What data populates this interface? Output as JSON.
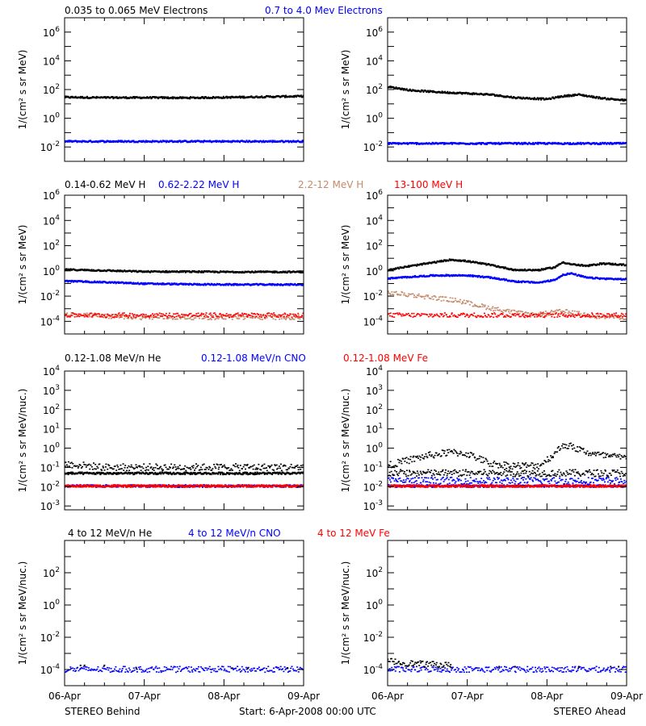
{
  "footer": {
    "left": "STEREO Behind",
    "center": "Start:  6-Apr-2008 00:00 UTC",
    "right": "STEREO Ahead"
  },
  "colors": {
    "black": "#000000",
    "blue": "#0000ff",
    "tan": "#c48a6a",
    "red": "#ff0000"
  },
  "chart_data": [
    {
      "type": "scatter",
      "row_title": [
        {
          "text": "0.035 to 0.065 MeV Electrons",
          "color": "black"
        },
        {
          "text": "0.7 to 4.0 Mev Electrons",
          "color": "blue"
        }
      ],
      "ylabel": "1/(cm² s sr MeV)",
      "yscale": "log",
      "ylim_exp": [
        -3,
        7
      ],
      "yticks": [
        {
          "exp": -2,
          "label": "10",
          "sup": "-2"
        },
        {
          "exp": 0,
          "label": "10",
          "sup": "0"
        },
        {
          "exp": 2,
          "label": "10",
          "sup": "2"
        },
        {
          "exp": 4,
          "label": "10",
          "sup": "4"
        },
        {
          "exp": 6,
          "label": "10",
          "sup": "6"
        }
      ],
      "xticks": [],
      "xlim_days": [
        0,
        3
      ],
      "panels": [
        {
          "spacecraft": "STEREO Behind",
          "series": [
            {
              "color": "black",
              "style": "dense",
              "x": [
                0,
                0.5,
                1.0,
                1.5,
                2.0,
                2.5,
                3.0
              ],
              "y": [
                30,
                28,
                28,
                27,
                29,
                32,
                35
              ]
            },
            {
              "color": "blue",
              "style": "dense",
              "x": [
                0,
                0.5,
                1.0,
                1.5,
                2.0,
                2.5,
                3.0
              ],
              "y": [
                0.025,
                0.025,
                0.025,
                0.025,
                0.025,
                0.025,
                0.025
              ]
            }
          ]
        },
        {
          "spacecraft": "STEREO Ahead",
          "series": [
            {
              "color": "black",
              "style": "dense",
              "x": [
                0,
                0.3,
                0.6,
                1.0,
                1.3,
                1.6,
                2.0,
                2.2,
                2.4,
                2.7,
                3.0
              ],
              "y": [
                160,
                90,
                70,
                55,
                45,
                28,
                22,
                35,
                45,
                25,
                18
              ]
            },
            {
              "color": "blue",
              "style": "dense",
              "x": [
                0,
                0.5,
                1.0,
                1.5,
                2.0,
                2.5,
                3.0
              ],
              "y": [
                0.018,
                0.018,
                0.018,
                0.018,
                0.018,
                0.018,
                0.018
              ]
            }
          ]
        }
      ]
    },
    {
      "type": "scatter",
      "row_title": [
        {
          "text": "0.14-0.62 MeV H",
          "color": "black"
        },
        {
          "text": "0.62-2.22 MeV H",
          "color": "blue"
        },
        {
          "text": "2.2-12 MeV H",
          "color": "tan"
        },
        {
          "text": "13-100 MeV H",
          "color": "red"
        }
      ],
      "ylabel": "1/(cm² s sr MeV)",
      "yscale": "log",
      "ylim_exp": [
        -5,
        6
      ],
      "yticks": [
        {
          "exp": -4,
          "label": "10",
          "sup": "-4"
        },
        {
          "exp": -2,
          "label": "10",
          "sup": "-2"
        },
        {
          "exp": 0,
          "label": "10",
          "sup": "0"
        },
        {
          "exp": 2,
          "label": "10",
          "sup": "2"
        },
        {
          "exp": 4,
          "label": "10",
          "sup": "4"
        },
        {
          "exp": 6,
          "label": "10",
          "sup": "6"
        }
      ],
      "xticks": [],
      "xlim_days": [
        0,
        3
      ],
      "panels": [
        {
          "spacecraft": "STEREO Behind",
          "series": [
            {
              "color": "black",
              "style": "dense",
              "x": [
                0,
                0.5,
                1.0,
                1.5,
                2.0,
                2.5,
                3.0
              ],
              "y": [
                1.3,
                1.1,
                0.9,
                0.9,
                0.85,
                0.85,
                0.85
              ]
            },
            {
              "color": "blue",
              "style": "dense",
              "x": [
                0,
                0.5,
                1.0,
                1.5,
                2.0,
                2.5,
                3.0
              ],
              "y": [
                0.16,
                0.13,
                0.1,
                0.09,
                0.085,
                0.085,
                0.085
              ]
            },
            {
              "color": "tan",
              "style": "scatter",
              "x": [
                0,
                0.5,
                1.0,
                1.5,
                2.0,
                2.5,
                3.0
              ],
              "y": [
                0.00035,
                0.00025,
                0.0002,
                0.0002,
                0.0002,
                0.0002,
                0.0002
              ]
            },
            {
              "color": "red",
              "style": "scatter",
              "x": [
                0,
                0.5,
                1.0,
                1.5,
                2.0,
                2.5,
                3.0
              ],
              "y": [
                0.0003,
                0.0003,
                0.0003,
                0.0003,
                0.0003,
                0.0003,
                0.0003
              ]
            }
          ]
        },
        {
          "spacecraft": "STEREO Ahead",
          "series": [
            {
              "color": "black",
              "style": "dense",
              "x": [
                0,
                0.2,
                0.5,
                0.8,
                1.0,
                1.3,
                1.6,
                1.9,
                2.1,
                2.2,
                2.3,
                2.5,
                2.7,
                3.0
              ],
              "y": [
                1.2,
                2.0,
                4.0,
                8.0,
                6.0,
                3.0,
                1.2,
                1.2,
                2.0,
                5.0,
                3.5,
                2.5,
                4.0,
                3.0
              ]
            },
            {
              "color": "blue",
              "style": "dense",
              "x": [
                0,
                0.3,
                0.6,
                1.0,
                1.3,
                1.6,
                1.9,
                2.1,
                2.2,
                2.3,
                2.5,
                2.7,
                3.0
              ],
              "y": [
                0.25,
                0.35,
                0.45,
                0.45,
                0.3,
                0.15,
                0.12,
                0.2,
                0.5,
                0.65,
                0.3,
                0.25,
                0.22
              ]
            },
            {
              "color": "tan",
              "style": "scatter",
              "x": [
                0,
                0.3,
                0.6,
                0.9,
                1.1,
                1.4,
                1.8,
                2.2,
                2.6,
                3.0
              ],
              "y": [
                0.018,
                0.012,
                0.007,
                0.004,
                0.002,
                0.0008,
                0.0003,
                0.0006,
                0.00025,
                0.0002
              ]
            },
            {
              "color": "red",
              "style": "scatter",
              "x": [
                0,
                0.5,
                1.0,
                1.5,
                2.0,
                2.5,
                3.0
              ],
              "y": [
                0.0003,
                0.0003,
                0.0003,
                0.0003,
                0.0003,
                0.0003,
                0.0003
              ]
            }
          ]
        }
      ]
    },
    {
      "type": "scatter",
      "row_title": [
        {
          "text": "0.12-1.08 MeV/n He",
          "color": "black"
        },
        {
          "text": "0.12-1.08 MeV/n CNO",
          "color": "blue"
        },
        {
          "text": "0.12-1.08 MeV Fe",
          "color": "red"
        }
      ],
      "ylabel": "1/(cm² s sr MeV/nuc.)",
      "yscale": "log",
      "ylim_exp": [
        -3.2,
        4
      ],
      "yticks": [
        {
          "exp": -3,
          "label": "10",
          "sup": "-3"
        },
        {
          "exp": -2,
          "label": "10",
          "sup": "-2"
        },
        {
          "exp": -1,
          "label": "10",
          "sup": "-1"
        },
        {
          "exp": 0,
          "label": "10",
          "sup": "0"
        },
        {
          "exp": 1,
          "label": "10",
          "sup": "1"
        },
        {
          "exp": 2,
          "label": "10",
          "sup": "2"
        },
        {
          "exp": 3,
          "label": "10",
          "sup": "3"
        },
        {
          "exp": 4,
          "label": "10",
          "sup": "4"
        }
      ],
      "xticks": [],
      "xlim_days": [
        0,
        3
      ],
      "panels": [
        {
          "spacecraft": "STEREO Behind",
          "series": [
            {
              "color": "black",
              "style": "scatter",
              "x": [
                0,
                0.5,
                1.0,
                1.5,
                2.0,
                2.5,
                3.0
              ],
              "y": [
                0.15,
                0.1,
                0.1,
                0.1,
                0.1,
                0.1,
                0.1
              ]
            },
            {
              "color": "black",
              "style": "dense",
              "x": [
                0,
                0.5,
                1.0,
                1.5,
                2.0,
                2.5,
                3.0
              ],
              "y": [
                0.05,
                0.05,
                0.05,
                0.05,
                0.05,
                0.05,
                0.05
              ]
            },
            {
              "color": "blue",
              "style": "dense",
              "x": [
                0,
                3.0
              ],
              "y": [
                0.011,
                0.011
              ]
            },
            {
              "color": "red",
              "style": "dense",
              "x": [
                0,
                3.0
              ],
              "y": [
                0.011,
                0.011
              ]
            }
          ]
        },
        {
          "spacecraft": "STEREO Ahead",
          "series": [
            {
              "color": "black",
              "style": "scatter",
              "x": [
                0,
                0.2,
                0.5,
                0.8,
                1.0,
                1.3,
                1.6,
                1.9,
                2.1,
                2.2,
                2.3,
                2.5,
                2.7,
                3.0
              ],
              "y": [
                0.12,
                0.2,
                0.4,
                0.6,
                0.5,
                0.15,
                0.12,
                0.12,
                0.5,
                1.5,
                1.2,
                0.6,
                0.4,
                0.3
              ]
            },
            {
              "color": "black",
              "style": "scatter",
              "x": [
                0,
                0.5,
                1.0,
                1.5,
                2.0,
                2.5,
                3.0
              ],
              "y": [
                0.05,
                0.05,
                0.05,
                0.05,
                0.05,
                0.05,
                0.05
              ]
            },
            {
              "color": "blue",
              "style": "scatter",
              "x": [
                0,
                0.5,
                1.0,
                1.5,
                2.0,
                2.5,
                3.0
              ],
              "y": [
                0.02,
                0.02,
                0.02,
                0.02,
                0.02,
                0.02,
                0.02
              ]
            },
            {
              "color": "blue",
              "style": "dense",
              "x": [
                0,
                3.0
              ],
              "y": [
                0.011,
                0.011
              ]
            },
            {
              "color": "red",
              "style": "dense",
              "x": [
                0,
                3.0
              ],
              "y": [
                0.011,
                0.011
              ]
            }
          ]
        }
      ]
    },
    {
      "type": "scatter",
      "row_title": [
        {
          "text": "4 to 12 MeV/n He",
          "color": "black"
        },
        {
          "text": "4 to 12 MeV/n CNO",
          "color": "blue"
        },
        {
          "text": "4 to 12 MeV Fe",
          "color": "red"
        }
      ],
      "ylabel": "1/(cm² s sr MeV/nuc.)",
      "yscale": "log",
      "ylim_exp": [
        -5,
        4
      ],
      "yticks": [
        {
          "exp": -4,
          "label": "10",
          "sup": "-4"
        },
        {
          "exp": -2,
          "label": "10",
          "sup": "-2"
        },
        {
          "exp": 0,
          "label": "10",
          "sup": "0"
        },
        {
          "exp": 2,
          "label": "10",
          "sup": "2"
        }
      ],
      "xticks": [
        "06-Apr",
        "07-Apr",
        "08-Apr",
        "09-Apr"
      ],
      "xlim_days": [
        0,
        3
      ],
      "panels": [
        {
          "spacecraft": "STEREO Behind",
          "series": [
            {
              "color": "blue",
              "style": "scatter",
              "x": [
                0,
                0.5,
                1.0,
                1.5,
                2.0,
                2.5,
                3.0
              ],
              "y": [
                0.0001,
                0.0001,
                0.0001,
                0.0001,
                0.0001,
                0.0001,
                0.0001
              ]
            },
            {
              "color": "black",
              "style": "sparse",
              "x": [
                0.2,
                0.25,
                0.5,
                0.9,
                2.1,
                2.3,
                2.8
              ],
              "y": [
                0.00018,
                0.00018,
                0.00018,
                0.00012,
                0.00012,
                0.00012,
                0.00012
              ]
            }
          ]
        },
        {
          "spacecraft": "STEREO Ahead",
          "series": [
            {
              "color": "blue",
              "style": "scatter",
              "x": [
                0,
                0.5,
                1.0,
                1.5,
                2.0,
                2.5,
                3.0
              ],
              "y": [
                0.0001,
                0.0001,
                0.0001,
                0.0001,
                0.0001,
                0.0001,
                0.0001
              ]
            },
            {
              "color": "black",
              "style": "scatter",
              "x": [
                0,
                0.2,
                0.4,
                0.6,
                0.8
              ],
              "y": [
                0.00035,
                0.00025,
                0.00022,
                0.0002,
                0.00018
              ]
            },
            {
              "color": "black",
              "style": "sparse",
              "x": [
                1.4,
                1.6,
                2.4,
                2.8,
                2.9
              ],
              "y": [
                0.00015,
                0.00015,
                0.00015,
                0.00015,
                0.00015
              ]
            }
          ]
        }
      ]
    }
  ]
}
